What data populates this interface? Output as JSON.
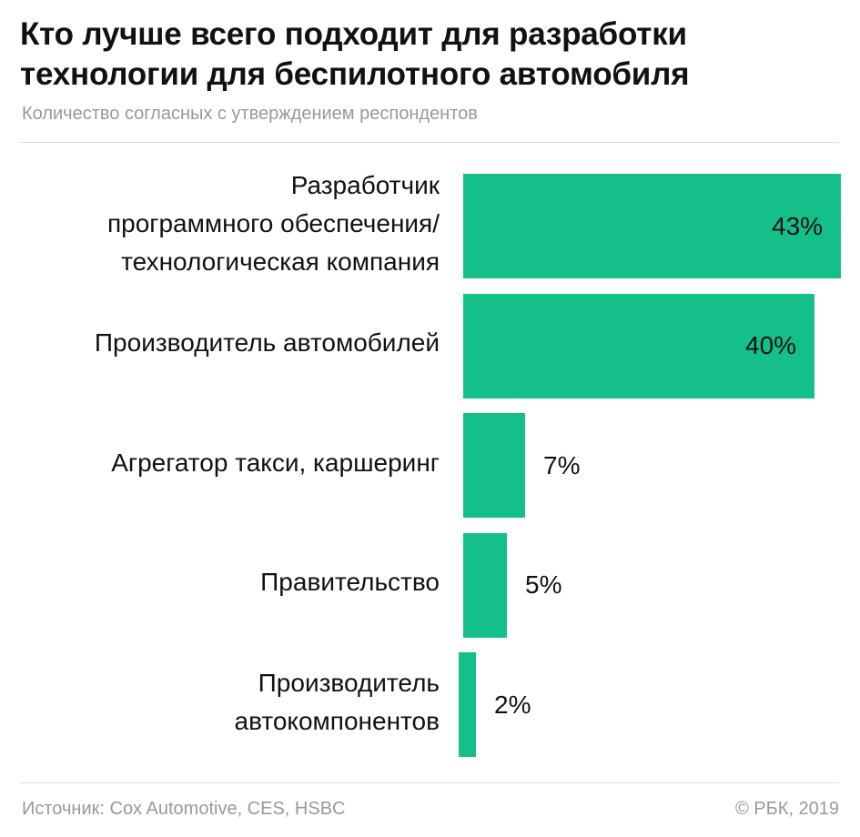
{
  "header": {
    "title": "Кто лучше всего подходит для разработки\nтехнологии для беспилотного автомобиля",
    "subtitle": "Количество согласных с утверждением респондентов"
  },
  "footer": {
    "source": "Источник: Cox Automotive, CES, HSBC",
    "copyright": "© РБК, 2019"
  },
  "colors": {
    "bar": "#14bf8a",
    "text": "#111111",
    "muted": "#999999"
  },
  "chart_data": {
    "type": "bar",
    "orientation": "horizontal",
    "title": "Кто лучше всего подходит для разработки технологии для беспилотного автомобиля",
    "subtitle": "Количество согласных с утверждением респондентов",
    "categories": [
      "Разработчик\nпрограммного обеспечения/\nтехнологическая компания",
      "Производитель автомобилей",
      "Агрегатор такси, каршеринг",
      "Правительство",
      "Производитель\nавтокомпонентов"
    ],
    "values": [
      43,
      40,
      7,
      5,
      2
    ],
    "value_labels": [
      "43%",
      "40%",
      "7%",
      "5%",
      "2%"
    ],
    "unit": "%",
    "xlim": [
      0,
      43
    ],
    "grid": false,
    "legend": "none"
  }
}
